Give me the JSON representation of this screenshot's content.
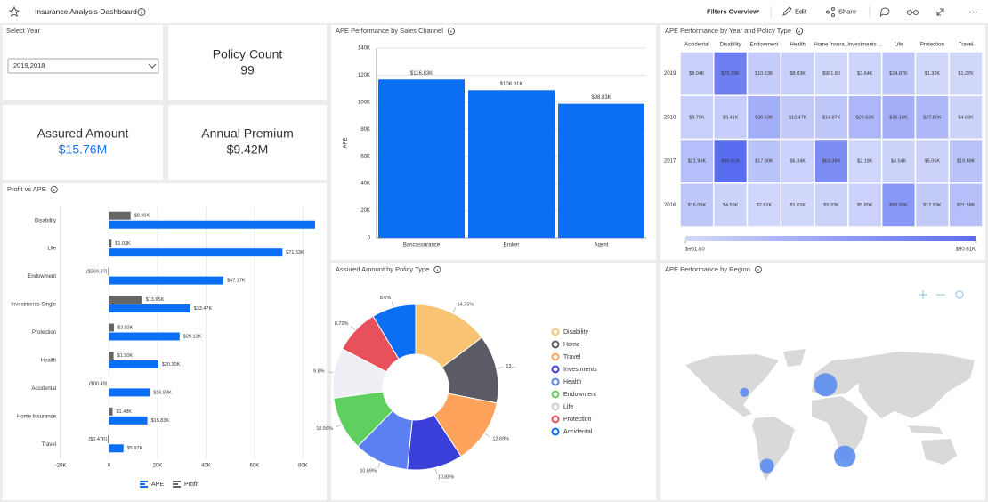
{
  "header": {
    "title": "Insurance Analysis Dashboard",
    "filters": "Filters Overview",
    "edit": "Edit",
    "share": "Share"
  },
  "filter": {
    "label": "Select Year",
    "value": "2019,2018"
  },
  "kpis": [
    {
      "label": "Policy Count",
      "value": "99"
    },
    {
      "label": "Assured Amount",
      "value": "$15.76M"
    },
    {
      "label": "Annual Premium",
      "value": "$9.42M"
    }
  ],
  "chart_data": [
    {
      "type": "bar",
      "title": "APE Performance by Sales Channel",
      "y_label": "APE",
      "categories": [
        "Bancassurance",
        "Broker",
        "Agent"
      ],
      "values": [
        116830,
        108910,
        98830
      ],
      "value_labels": [
        "$116.83K",
        "$108.91K",
        "$98.83K"
      ],
      "color": "#0b6ff4",
      "ylim": [
        0,
        140000
      ],
      "yticks": [
        0,
        {
          "value": 20000,
          "label": "20K"
        },
        {
          "value": 40000,
          "label": "40K"
        },
        {
          "value": 60000,
          "label": "60K"
        },
        {
          "value": 80000,
          "label": "80K"
        },
        {
          "value": 100000,
          "label": "100K"
        },
        {
          "value": 120000,
          "label": "120K"
        },
        {
          "value": 140000,
          "label": "140K"
        }
      ],
      "grid": true
    },
    {
      "type": "heatmap",
      "title": "APE Performance by Year and Policy Type",
      "categories": [
        "Accidental",
        "Disability",
        "Endowment",
        "Health",
        "Home Insura...",
        "Investments ...",
        "Life",
        "Protection",
        "Travel"
      ],
      "rows": [
        "2019",
        "2018",
        "2017",
        "2016"
      ],
      "values": [
        [
          8040,
          75290,
          10630,
          8030,
          961.8,
          3640,
          14870,
          1320,
          1270
        ],
        [
          8790,
          9410,
          36530,
          12470,
          14870,
          29630,
          36160,
          27800,
          4690
        ],
        [
          21940,
          90610,
          17900,
          6340,
          63390,
          2180,
          4540,
          5050,
          19690
        ],
        [
          16080,
          4580,
          2620,
          1020,
          5330,
          5800,
          56500,
          12930,
          21580
        ]
      ],
      "value_labels": [
        [
          "$8.04K",
          "$75.29K",
          "$10.63K",
          "$8.03K",
          "$961.80",
          "$3.64K",
          "$14.87K",
          "$1.32K",
          "$1.27K"
        ],
        [
          "$8.79K",
          "$9.41K",
          "$36.53K",
          "$12.47K",
          "$14.87K",
          "$29.63K",
          "$36.16K",
          "$27.80K",
          "$4.69K"
        ],
        [
          "$21.94K",
          "$90.61K",
          "$17.90K",
          "$6.34K",
          "$63.39K",
          "$2.18K",
          "$4.54K",
          "$5.05K",
          "$19.69K"
        ],
        [
          "$16.08K",
          "$4.58K",
          "$2.62K",
          "$1.02K",
          "$5.33K",
          "$5.80K",
          "$56.50K",
          "$12.93K",
          "$21.58K"
        ]
      ],
      "zlim": [
        961.8,
        90610
      ],
      "colorbar_ticks": [
        {
          "value": 961.8,
          "label": "$961.80"
        },
        {
          "value": 90610,
          "label": "$90.61K"
        }
      ],
      "color_range": [
        "#d2d8fc",
        "#5a6df0"
      ]
    },
    {
      "type": "hbar",
      "title": "Profit vs APE",
      "categories": [
        "Disability",
        "Life",
        "Endowment",
        "Investments Single",
        "Protection",
        "Health",
        "Accidental",
        "Home Insurance",
        "Travel"
      ],
      "series": [
        {
          "name": "APE",
          "color": "#0b6ff4",
          "values": [
            85000,
            71530,
            47170,
            33470,
            29120,
            20300,
            16830,
            15830,
            5970
          ],
          "value_labels": [
            null,
            "$71.53K",
            "$47.17K",
            "$33.47K",
            "$29.12K",
            "$20.30K",
            "$16.83K",
            "$15.83K",
            "$5.97K"
          ]
        },
        {
          "name": "Profit",
          "color": "#666666",
          "values": [
            8900,
            1030,
            -369.37,
            13650,
            2020,
            1900,
            -90.49,
            1480,
            -470
          ],
          "value_labels": [
            "$8.90K",
            "$1.03K",
            "($369.37)",
            "$13.65K",
            "$2.02K",
            "$1.90K",
            "($90.49)",
            "$1.48K",
            "($0.47K)"
          ]
        }
      ],
      "xlim": [
        -20000,
        85000
      ],
      "xticks": [
        {
          "value": -20000,
          "label": "-20K"
        },
        0,
        {
          "value": 20000,
          "label": "20K"
        },
        {
          "value": 40000,
          "label": "40K"
        },
        {
          "value": 60000,
          "label": "60K"
        },
        {
          "value": 80000,
          "label": "80K"
        }
      ],
      "grid": true
    },
    {
      "type": "donut",
      "title": "Assured Amount by Policy Type",
      "categories": [
        "Disability",
        "Home",
        "Travel",
        "Investments",
        "Health",
        "Endowment",
        "Life",
        "Protection",
        "Accidental"
      ],
      "values": [
        14.75,
        13.31,
        12.69,
        10.88,
        10.69,
        10.56,
        9.8,
        8.72,
        8.6
      ],
      "value_labels": [
        "14.75%",
        "13...",
        "12.69%",
        "10.88%",
        "10.69%",
        "10.56%",
        "9.8%",
        "8.72%",
        "8.6%"
      ],
      "colors": [
        "#f9c374",
        "#5b5b66",
        "#ffa35c",
        "#3b40da",
        "#5c7ff1",
        "#5fd05f",
        "#eeeff4",
        "#e8505b",
        "#0b6ff4"
      ]
    },
    {
      "type": "bubble-map",
      "title": "APE Performance by Region",
      "lon": [
        -95,
        2,
        25,
        -68
      ],
      "lat": [
        38,
        46,
        -30,
        -40
      ],
      "values": [
        20000,
        130000,
        115000,
        50000
      ],
      "color": "#5b8def"
    }
  ]
}
